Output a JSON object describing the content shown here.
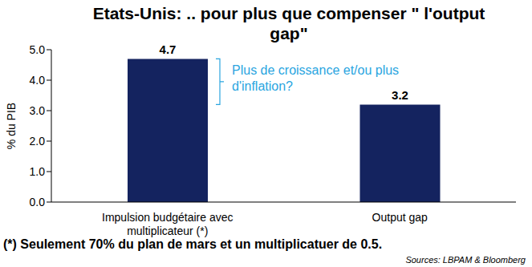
{
  "chart_data": {
    "type": "bar",
    "title": "Etats-Unis: .. pour plus que compenser \" l'output gap\"",
    "categories": [
      "Impulsion budgétaire avec multiplicateur (*)",
      "Output gap"
    ],
    "values": [
      4.7,
      3.2
    ],
    "color": "#14235f",
    "ylim": [
      0,
      5
    ],
    "yticks": [
      {
        "value": 0,
        "label": "0.0"
      },
      {
        "value": 1,
        "label": "1.0"
      },
      {
        "value": 2,
        "label": "2.0"
      },
      {
        "value": 3,
        "label": "3.0"
      },
      {
        "value": 4,
        "label": "4.0"
      },
      {
        "value": 5,
        "label": "5.0"
      }
    ],
    "y_label": "% du PIB",
    "data_labels": true,
    "grid": false,
    "annotation": "Plus de croissance et/ou plus d'inflation?",
    "footnote": "(*) Seulement 70% du plan de mars et un multiplicatuer de 0.5.",
    "source": "Sources: LBPAM & Bloomberg"
  }
}
